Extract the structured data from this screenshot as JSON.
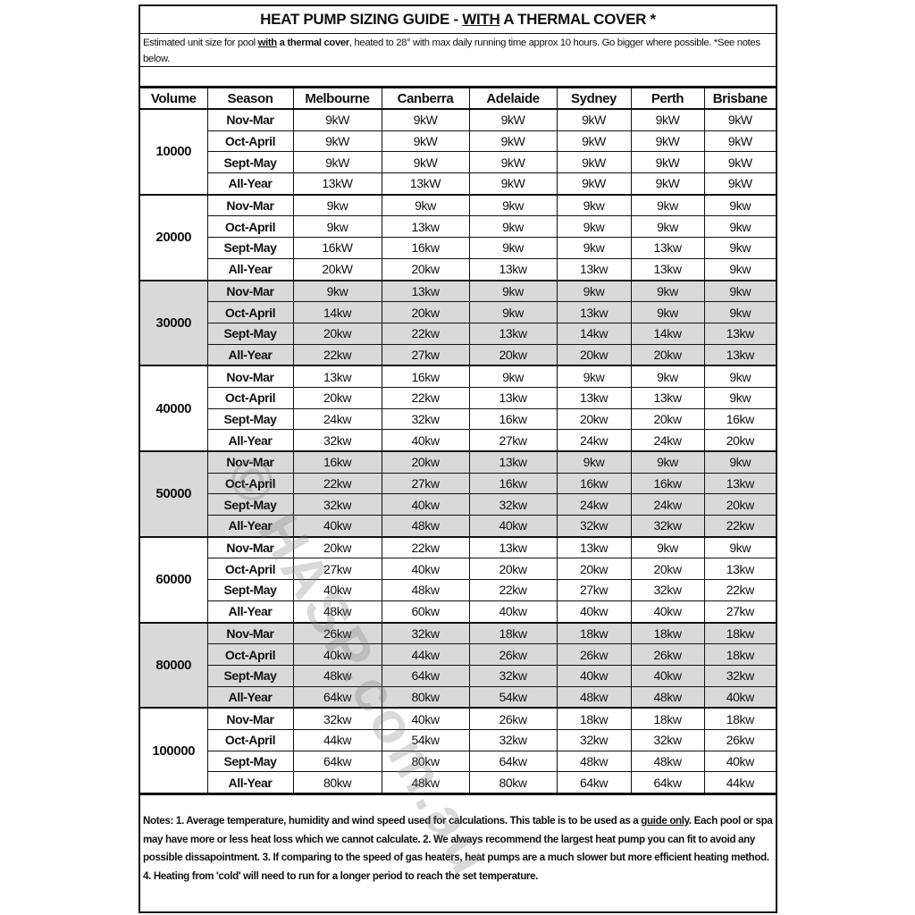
{
  "title": {
    "before": "HEAT PUMP SIZING GUIDE - ",
    "underlined": "WITH",
    "after": " A THERMAL COVER *"
  },
  "subtitle": {
    "before": "Estimated unit size for pool ",
    "underlined": "with",
    "bold": " a thermal cover",
    "after": ", heated to 28° with max daily running time approx 10 hours. Go bigger where possible. *See notes below."
  },
  "table": {
    "headers": [
      "Volume",
      "Season",
      "Melbourne",
      "Canberra",
      "Adelaide",
      "Sydney",
      "Perth",
      "Brisbane"
    ],
    "shade_color": "#d9d9d9",
    "groups": [
      {
        "volume": "10000",
        "shaded": false,
        "rows": [
          {
            "season": "Nov-Mar",
            "values": [
              "9kW",
              "9kW",
              "9kW",
              "9kW",
              "9kW",
              "9kW"
            ]
          },
          {
            "season": "Oct-April",
            "values": [
              "9kW",
              "9kW",
              "9kW",
              "9kW",
              "9kW",
              "9kW"
            ]
          },
          {
            "season": "Sept-May",
            "values": [
              "9kW",
              "9kW",
              "9kW",
              "9kW",
              "9kW",
              "9kW"
            ]
          },
          {
            "season": "All-Year",
            "values": [
              "13kW",
              "13kW",
              "9kW",
              "9kW",
              "9kW",
              "9kW"
            ]
          }
        ]
      },
      {
        "volume": "20000",
        "shaded": false,
        "rows": [
          {
            "season": "Nov-Mar",
            "values": [
              "9kw",
              "9kw",
              "9kw",
              "9kw",
              "9kw",
              "9kw"
            ]
          },
          {
            "season": "Oct-April",
            "values": [
              "9kw",
              "13kw",
              "9kw",
              "9kw",
              "9kw",
              "9kw"
            ]
          },
          {
            "season": "Sept-May",
            "values": [
              "16kW",
              "16kw",
              "9kw",
              "9kw",
              "13kw",
              "9kw"
            ]
          },
          {
            "season": "All-Year",
            "values": [
              "20kW",
              "20kw",
              "13kw",
              "13kw",
              "13kw",
              "9kw"
            ]
          }
        ]
      },
      {
        "volume": "30000",
        "shaded": true,
        "rows": [
          {
            "season": "Nov-Mar",
            "values": [
              "9kw",
              "13kw",
              "9kw",
              "9kw",
              "9kw",
              "9kw"
            ]
          },
          {
            "season": "Oct-April",
            "values": [
              "14kw",
              "20kw",
              "9kw",
              "13kw",
              "9kw",
              "9kw"
            ]
          },
          {
            "season": "Sept-May",
            "values": [
              "20kw",
              "22kw",
              "13kw",
              "14kw",
              "14kw",
              "13kw"
            ]
          },
          {
            "season": "All-Year",
            "values": [
              "22kw",
              "27kw",
              "20kw",
              "20kw",
              "20kw",
              "13kw"
            ]
          }
        ]
      },
      {
        "volume": "40000",
        "shaded": false,
        "rows": [
          {
            "season": "Nov-Mar",
            "values": [
              "13kw",
              "16kw",
              "9kw",
              "9kw",
              "9kw",
              "9kw"
            ]
          },
          {
            "season": "Oct-April",
            "values": [
              "20kw",
              "22kw",
              "13kw",
              "13kw",
              "13kw",
              "9kw"
            ]
          },
          {
            "season": "Sept-May",
            "values": [
              "24kw",
              "32kw",
              "16kw",
              "20kw",
              "20kw",
              "16kw"
            ]
          },
          {
            "season": "All-Year",
            "values": [
              "32kw",
              "40kw",
              "27kw",
              "24kw",
              "24kw",
              "20kw"
            ]
          }
        ]
      },
      {
        "volume": "50000",
        "shaded": true,
        "rows": [
          {
            "season": "Nov-Mar",
            "values": [
              "16kw",
              "20kw",
              "13kw",
              "9kw",
              "9kw",
              "9kw"
            ]
          },
          {
            "season": "Oct-April",
            "values": [
              "22kw",
              "27kw",
              "16kw",
              "16kw",
              "16kw",
              "13kw"
            ]
          },
          {
            "season": "Sept-May",
            "values": [
              "32kw",
              "40kw",
              "32kw",
              "24kw",
              "24kw",
              "20kw"
            ]
          },
          {
            "season": "All-Year",
            "values": [
              "40kw",
              "48kw",
              "40kw",
              "32kw",
              "32kw",
              "22kw"
            ]
          }
        ]
      },
      {
        "volume": "60000",
        "shaded": false,
        "rows": [
          {
            "season": "Nov-Mar",
            "values": [
              "20kw",
              "22kw",
              "13kw",
              "13kw",
              "9kw",
              "9kw"
            ]
          },
          {
            "season": "Oct-April",
            "values": [
              "27kw",
              "40kw",
              "20kw",
              "20kw",
              "20kw",
              "13kw"
            ]
          },
          {
            "season": "Sept-May",
            "values": [
              "40kw",
              "48kw",
              "22kw",
              "27kw",
              "32kw",
              "22kw"
            ]
          },
          {
            "season": "All-Year",
            "values": [
              "48kw",
              "60kw",
              "40kw",
              "40kw",
              "40kw",
              "27kw"
            ]
          }
        ]
      },
      {
        "volume": "80000",
        "shaded": true,
        "rows": [
          {
            "season": "Nov-Mar",
            "values": [
              "26kw",
              "32kw",
              "18kw",
              "18kw",
              "18kw",
              "18kw"
            ]
          },
          {
            "season": "Oct-April",
            "values": [
              "40kw",
              "44kw",
              "26kw",
              "26kw",
              "26kw",
              "18kw"
            ]
          },
          {
            "season": "Sept-May",
            "values": [
              "48kw",
              "64kw",
              "32kw",
              "40kw",
              "40kw",
              "32kw"
            ]
          },
          {
            "season": "All-Year",
            "values": [
              "64kw",
              "80kw",
              "54kw",
              "48kw",
              "48kw",
              "40kw"
            ]
          }
        ]
      },
      {
        "volume": "100000",
        "shaded": false,
        "rows": [
          {
            "season": "Nov-Mar",
            "values": [
              "32kw",
              "40kw",
              "26kw",
              "18kw",
              "18kw",
              "18kw"
            ]
          },
          {
            "season": "Oct-April",
            "values": [
              "44kw",
              "54kw",
              "32kw",
              "32kw",
              "32kw",
              "26kw"
            ]
          },
          {
            "season": "Sept-May",
            "values": [
              "64kw",
              "80kw",
              "64kw",
              "48kw",
              "48kw",
              "40kw"
            ]
          },
          {
            "season": "All-Year",
            "values": [
              "80kw",
              "48kw",
              "80kw",
              "64kw",
              "64kw",
              "44kw"
            ]
          }
        ]
      }
    ]
  },
  "notes": {
    "before": "Notes: 1. Average temperature, humidity and wind speed used for calculations. This table is to be used as a ",
    "underlined": "guide only",
    "after": ". Each pool or spa may have more or less heat loss which we cannot calculate. 2. We always recommend the largest heat pump you can fit to avoid any possible dissapointment. 3. If comparing to the speed of gas heaters, heat pumps are a much slower but more efficient heating method. 4. Heating from 'cold' will need to run for a longer period to reach the set temperature."
  },
  "watermark": "© HASP.com.au"
}
